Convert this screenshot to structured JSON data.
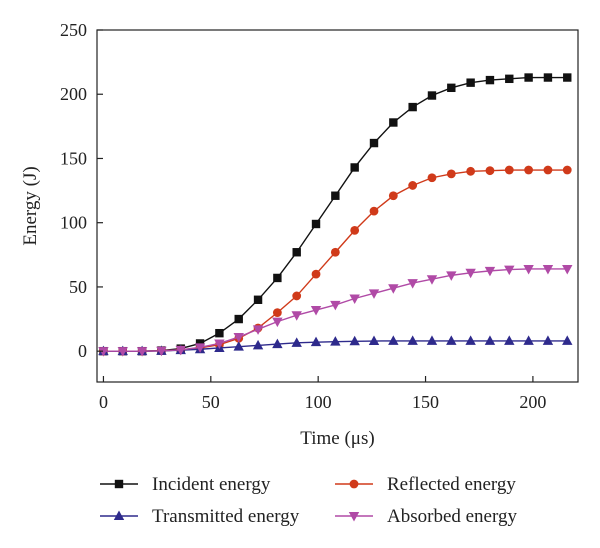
{
  "chart_data": {
    "type": "line",
    "xlabel": "Time (μs)",
    "ylabel": "Energy (J)",
    "xlim": [
      -3,
      221
    ],
    "ylim": [
      -24,
      250
    ],
    "xticks": [
      0,
      50,
      100,
      150,
      200
    ],
    "xtick_labels": [
      "0",
      "50",
      "100",
      "150",
      "200"
    ],
    "yticks": [
      0,
      50,
      100,
      150,
      200,
      250
    ],
    "ytick_labels": [
      "0",
      "50",
      "100",
      "150",
      "200",
      "250"
    ],
    "grid": false,
    "legend_position": "bottom",
    "x": [
      0,
      9,
      18,
      27,
      36,
      45,
      54,
      63,
      72,
      81,
      90,
      99,
      108,
      117,
      126,
      135,
      144,
      153,
      162,
      171,
      180,
      189,
      198,
      207,
      216
    ],
    "series": [
      {
        "name": "Incident energy",
        "color": "#111111",
        "marker": "square",
        "values": [
          0,
          0,
          0,
          0.5,
          2,
          6,
          14,
          25,
          40,
          57,
          77,
          99,
          121,
          143,
          162,
          178,
          190,
          199,
          205,
          209,
          211,
          212,
          213,
          213,
          213
        ]
      },
      {
        "name": "Reflected energy",
        "color": "#d03a1a",
        "marker": "circle",
        "values": [
          0,
          0,
          0,
          0.3,
          1,
          2.5,
          5,
          10,
          18,
          30,
          43,
          60,
          77,
          94,
          109,
          121,
          129,
          135,
          138,
          140,
          140.5,
          141,
          141,
          141,
          141
        ]
      },
      {
        "name": "Transmitted energy",
        "color": "#2e2a8c",
        "marker": "triangle-up",
        "values": [
          0,
          0,
          0,
          0.2,
          0.8,
          1.5,
          2.5,
          3.5,
          4.5,
          5.5,
          6.5,
          7,
          7.4,
          7.7,
          7.9,
          8,
          8,
          8,
          8,
          8,
          8,
          8,
          8,
          8,
          8
        ]
      },
      {
        "name": "Absorbed energy",
        "color": "#b04aa6",
        "marker": "triangle-down",
        "values": [
          0,
          0,
          0,
          0.3,
          1,
          3,
          6,
          11,
          17,
          23,
          28,
          32,
          36,
          41,
          45,
          49,
          53,
          56,
          59,
          61,
          62.5,
          63.5,
          64,
          64,
          64
        ]
      }
    ]
  }
}
